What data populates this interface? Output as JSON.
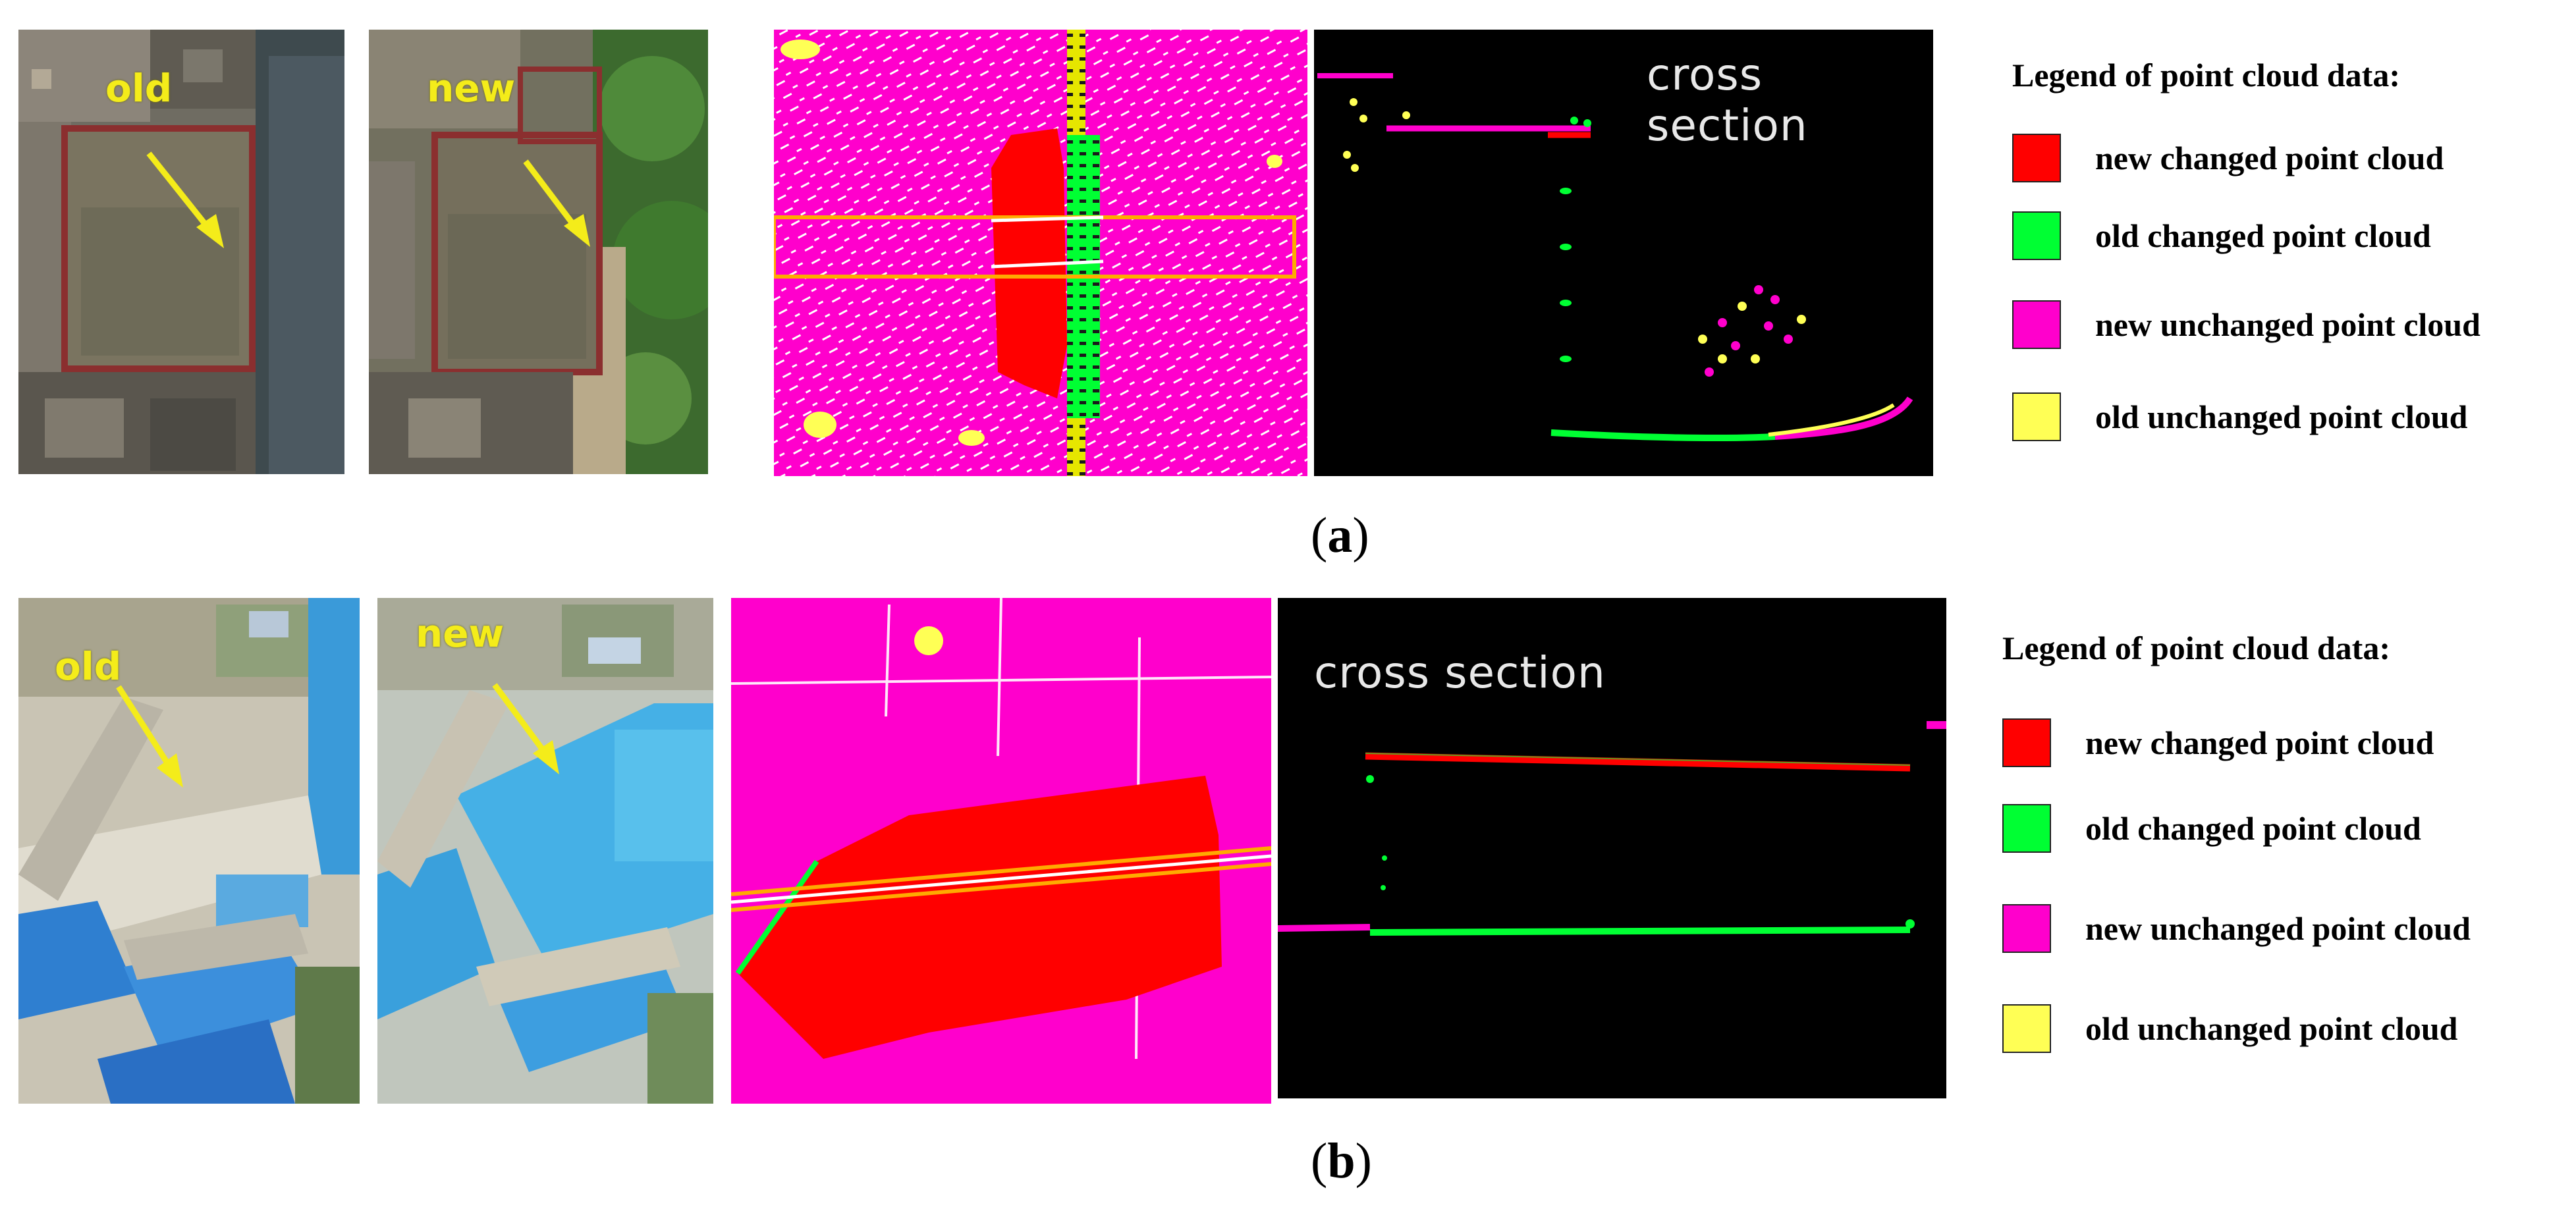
{
  "figure": {
    "panel_a": {
      "caption_open": "(",
      "caption_letter": "a",
      "caption_close": ")",
      "old_label": "old",
      "new_label": "new",
      "cross_section_label": "cross section",
      "legend_title": "Legend of point cloud data:",
      "legend": [
        {
          "label": "new changed point cloud",
          "color": "#ff0000"
        },
        {
          "label": "old changed point cloud",
          "color": "#00ff33"
        },
        {
          "label": "new unchanged point cloud",
          "color": "#ff00cc"
        },
        {
          "label": "old unchanged point cloud",
          "color": "#ffff55"
        }
      ]
    },
    "panel_b": {
      "caption_open": "(",
      "caption_letter": "b",
      "caption_close": ")",
      "old_label": "old",
      "new_label": "new",
      "cross_section_label": "cross section",
      "legend_title": "Legend of point cloud data:",
      "legend": [
        {
          "label": "new changed point cloud",
          "color": "#ff0000"
        },
        {
          "label": "old changed point cloud",
          "color": "#00ff33"
        },
        {
          "label": "new unchanged point cloud",
          "color": "#ff00cc"
        },
        {
          "label": "old unchanged point cloud",
          "color": "#ffff55"
        }
      ]
    }
  }
}
